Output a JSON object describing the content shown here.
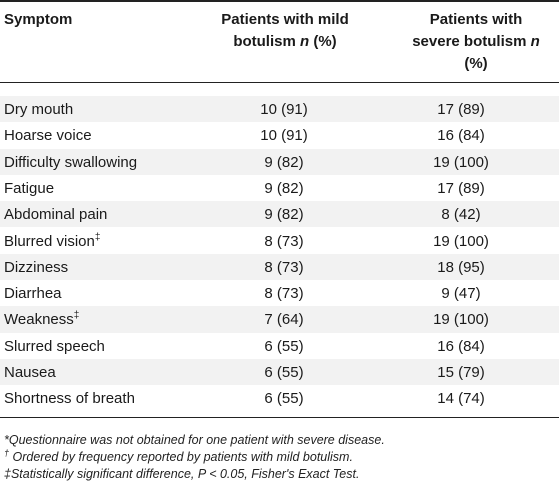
{
  "table": {
    "headers": {
      "symptom": "Symptom",
      "mild_line1": "Patients with mild",
      "mild_line2_a": "botulism ",
      "mild_line2_n": "n",
      "mild_line2_b": " (%)",
      "severe_line1": "Patients with",
      "severe_line2_a": "severe botulism ",
      "severe_line2_n": "n",
      "severe_line3": "(%)"
    },
    "rows": [
      {
        "symptom": "Dry mouth",
        "mark": "",
        "mild": "10 (91)",
        "severe": "17 (89)"
      },
      {
        "symptom": "Hoarse voice",
        "mark": "",
        "mild": "10 (91)",
        "severe": "16 (84)"
      },
      {
        "symptom": "Difficulty swallowing",
        "mark": "",
        "mild": "9 (82)",
        "severe": "19 (100)"
      },
      {
        "symptom": "Fatigue",
        "mark": "",
        "mild": "9 (82)",
        "severe": "17 (89)"
      },
      {
        "symptom": "Abdominal pain",
        "mark": "",
        "mild": "9 (82)",
        "severe": "8 (42)"
      },
      {
        "symptom": "Blurred vision",
        "mark": "‡",
        "mild": "8 (73)",
        "severe": "19 (100)"
      },
      {
        "symptom": "Dizziness",
        "mark": "",
        "mild": "8 (73)",
        "severe": "18 (95)"
      },
      {
        "symptom": "Diarrhea",
        "mark": "",
        "mild": "8 (73)",
        "severe": "9 (47)"
      },
      {
        "symptom": "Weakness",
        "mark": "‡",
        "mild": "7 (64)",
        "severe": "19 (100)"
      },
      {
        "symptom": "Slurred speech",
        "mark": "",
        "mild": "6 (55)",
        "severe": "16 (84)"
      },
      {
        "symptom": "Nausea",
        "mark": "",
        "mild": "6 (55)",
        "severe": "15 (79)"
      },
      {
        "symptom": "Shortness of breath",
        "mark": "",
        "mild": "6 (55)",
        "severe": "14 (74)"
      }
    ]
  },
  "footnotes": {
    "fn1": "*Questionnaire was not obtained for one patient with severe disease.",
    "fn2_mark": "†",
    "fn2_text": " Ordered by frequency reported by patients with mild botulism.",
    "fn3": "‡Statistically significant difference, P < 0.05, Fisher's Exact Test."
  }
}
